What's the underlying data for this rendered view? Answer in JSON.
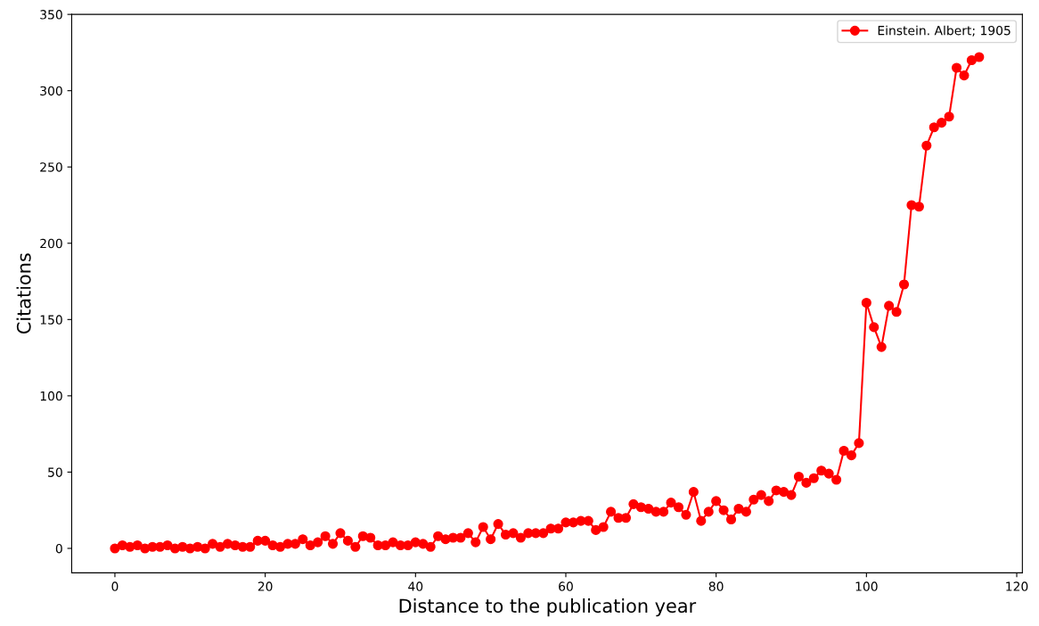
{
  "chart_data": {
    "type": "line",
    "xlabel": "Distance to the publication year",
    "ylabel": "Citations",
    "x": [
      0,
      1,
      2,
      3,
      4,
      5,
      6,
      7,
      8,
      9,
      10,
      11,
      12,
      13,
      14,
      15,
      16,
      17,
      18,
      19,
      20,
      21,
      22,
      23,
      24,
      25,
      26,
      27,
      28,
      29,
      30,
      31,
      32,
      33,
      34,
      35,
      36,
      37,
      38,
      39,
      40,
      41,
      42,
      43,
      44,
      45,
      46,
      47,
      48,
      49,
      50,
      51,
      52,
      53,
      54,
      55,
      56,
      57,
      58,
      59,
      60,
      61,
      62,
      63,
      64,
      65,
      66,
      67,
      68,
      69,
      70,
      71,
      72,
      73,
      74,
      75,
      76,
      77,
      78,
      79,
      80,
      81,
      82,
      83,
      84,
      85,
      86,
      87,
      88,
      89,
      90,
      91,
      92,
      93,
      94,
      95,
      96,
      97,
      98,
      99,
      100,
      101,
      102,
      103,
      104,
      105,
      106,
      107,
      108,
      109,
      110,
      111,
      112,
      113,
      114,
      115
    ],
    "series": [
      {
        "name": "Einstein. Albert; 1905",
        "color": "#ff0000",
        "values": [
          0,
          2,
          1,
          2,
          0,
          1,
          1,
          2,
          0,
          1,
          0,
          1,
          0,
          3,
          1,
          3,
          2,
          1,
          1,
          5,
          5,
          2,
          1,
          3,
          3,
          6,
          2,
          4,
          8,
          3,
          10,
          5,
          1,
          8,
          7,
          2,
          2,
          4,
          2,
          2,
          4,
          3,
          1,
          8,
          6,
          7,
          7,
          10,
          4,
          14,
          6,
          16,
          9,
          10,
          7,
          10,
          10,
          10,
          13,
          13,
          17,
          17,
          18,
          18,
          12,
          14,
          24,
          20,
          20,
          29,
          27,
          26,
          24,
          24,
          30,
          27,
          22,
          37,
          18,
          24,
          31,
          25,
          19,
          26,
          24,
          32,
          35,
          31,
          38,
          37,
          35,
          47,
          43,
          46,
          51,
          49,
          45,
          64,
          61,
          69,
          161,
          145,
          132,
          159,
          155,
          173,
          225,
          224,
          264,
          276,
          279,
          283,
          315,
          310,
          320,
          322
        ]
      }
    ],
    "xlim": [
      -5.75,
      120.75
    ],
    "xticks": [
      0,
      20,
      40,
      60,
      80,
      100,
      120
    ],
    "ylim": [
      -16,
      350
    ],
    "yticks": [
      0,
      50,
      100,
      150,
      200,
      250,
      300,
      350
    ],
    "marker": "circle",
    "line_style": "solid",
    "legend": "top right",
    "grid": false
  }
}
